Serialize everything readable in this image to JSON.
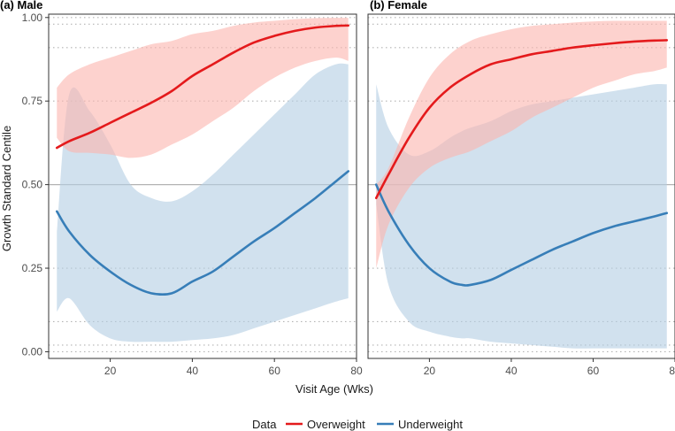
{
  "chart_data": {
    "type": "line",
    "xlabel": "Visit Age (Wks)",
    "ylabel": "Growth Standard Centile",
    "xlim": [
      5,
      80
    ],
    "ylim": [
      -0.02,
      1.01
    ],
    "x_ticks": [
      20,
      40,
      60,
      80
    ],
    "y_ticks": [
      0.0,
      0.25,
      0.5,
      0.75,
      1.0
    ],
    "y_tick_labels": [
      "0.00",
      "0.25",
      "0.50",
      "0.75",
      "1.00"
    ],
    "reference_lines": {
      "solid": [
        0.5
      ],
      "dotted": [
        0.0,
        0.02,
        0.09,
        0.25,
        0.75,
        0.91,
        0.98,
        1.0
      ]
    },
    "legend": {
      "title": "Data",
      "position": "bottom",
      "entries": [
        {
          "name": "Overweight",
          "color": "#E41A1C"
        },
        {
          "name": "Underweight",
          "color": "#377EB8"
        }
      ]
    },
    "colors": {
      "Overweight": "#E41A1C",
      "Underweight": "#377EB8",
      "Overweight_band": "#FBB4AE",
      "Underweight_band": "#B3CDE3",
      "reference": "#b3b3b3",
      "grid": "#cccccc"
    },
    "panels": [
      {
        "title": "(a) Male",
        "series": [
          {
            "name": "Overweight",
            "x": [
              7,
              10,
              15,
              20,
              25,
              30,
              35,
              40,
              45,
              50,
              55,
              60,
              65,
              70,
              75,
              78
            ],
            "y": [
              0.61,
              0.63,
              0.655,
              0.685,
              0.715,
              0.745,
              0.78,
              0.825,
              0.86,
              0.895,
              0.925,
              0.945,
              0.96,
              0.97,
              0.975,
              0.976
            ],
            "lower": [
              0.64,
              0.6,
              0.595,
              0.59,
              0.58,
              0.59,
              0.62,
              0.65,
              0.69,
              0.73,
              0.78,
              0.82,
              0.85,
              0.87,
              0.88,
              0.87
            ],
            "upper": [
              0.79,
              0.83,
              0.86,
              0.88,
              0.9,
              0.92,
              0.93,
              0.95,
              0.96,
              0.975,
              0.985,
              0.99,
              0.995,
              0.998,
              0.999,
              0.999
            ]
          },
          {
            "name": "Underweight",
            "x": [
              7,
              10,
              15,
              20,
              25,
              30,
              35,
              40,
              45,
              50,
              55,
              60,
              65,
              70,
              75,
              78
            ],
            "y": [
              0.42,
              0.36,
              0.29,
              0.24,
              0.2,
              0.175,
              0.175,
              0.21,
              0.24,
              0.285,
              0.33,
              0.37,
              0.415,
              0.46,
              0.51,
              0.54
            ],
            "lower": [
              0.12,
              0.16,
              0.08,
              0.04,
              0.03,
              0.03,
              0.03,
              0.035,
              0.04,
              0.05,
              0.07,
              0.09,
              0.11,
              0.13,
              0.15,
              0.16
            ],
            "upper": [
              0.36,
              0.77,
              0.72,
              0.62,
              0.5,
              0.46,
              0.45,
              0.48,
              0.53,
              0.59,
              0.65,
              0.71,
              0.77,
              0.83,
              0.86,
              0.86
            ]
          }
        ]
      },
      {
        "title": "(b) Female",
        "series": [
          {
            "name": "Overweight",
            "x": [
              7,
              10,
              15,
              20,
              25,
              30,
              35,
              40,
              45,
              50,
              55,
              60,
              65,
              70,
              75,
              78
            ],
            "y": [
              0.46,
              0.53,
              0.64,
              0.73,
              0.79,
              0.83,
              0.86,
              0.875,
              0.89,
              0.9,
              0.91,
              0.917,
              0.923,
              0.928,
              0.931,
              0.932
            ],
            "lower": [
              0.25,
              0.38,
              0.49,
              0.55,
              0.58,
              0.6,
              0.63,
              0.66,
              0.7,
              0.73,
              0.76,
              0.79,
              0.81,
              0.83,
              0.84,
              0.85
            ],
            "upper": [
              0.5,
              0.55,
              0.7,
              0.82,
              0.89,
              0.93,
              0.95,
              0.965,
              0.975,
              0.98,
              0.985,
              0.988,
              0.99,
              0.99,
              0.99,
              0.99
            ]
          },
          {
            "name": "Underweight",
            "x": [
              7,
              10,
              15,
              20,
              25,
              28,
              30,
              35,
              40,
              45,
              50,
              55,
              60,
              65,
              70,
              75,
              78
            ],
            "y": [
              0.5,
              0.42,
              0.32,
              0.25,
              0.21,
              0.2,
              0.2,
              0.215,
              0.245,
              0.275,
              0.305,
              0.33,
              0.355,
              0.375,
              0.39,
              0.405,
              0.415
            ],
            "lower": [
              0.44,
              0.2,
              0.09,
              0.06,
              0.045,
              0.04,
              0.04,
              0.03,
              0.025,
              0.02,
              0.015,
              0.01,
              0.01,
              0.01,
              0.01,
              0.01,
              0.01
            ],
            "upper": [
              0.8,
              0.67,
              0.59,
              0.6,
              0.64,
              0.66,
              0.67,
              0.69,
              0.72,
              0.74,
              0.75,
              0.76,
              0.77,
              0.78,
              0.79,
              0.8,
              0.8
            ]
          }
        ]
      }
    ]
  }
}
